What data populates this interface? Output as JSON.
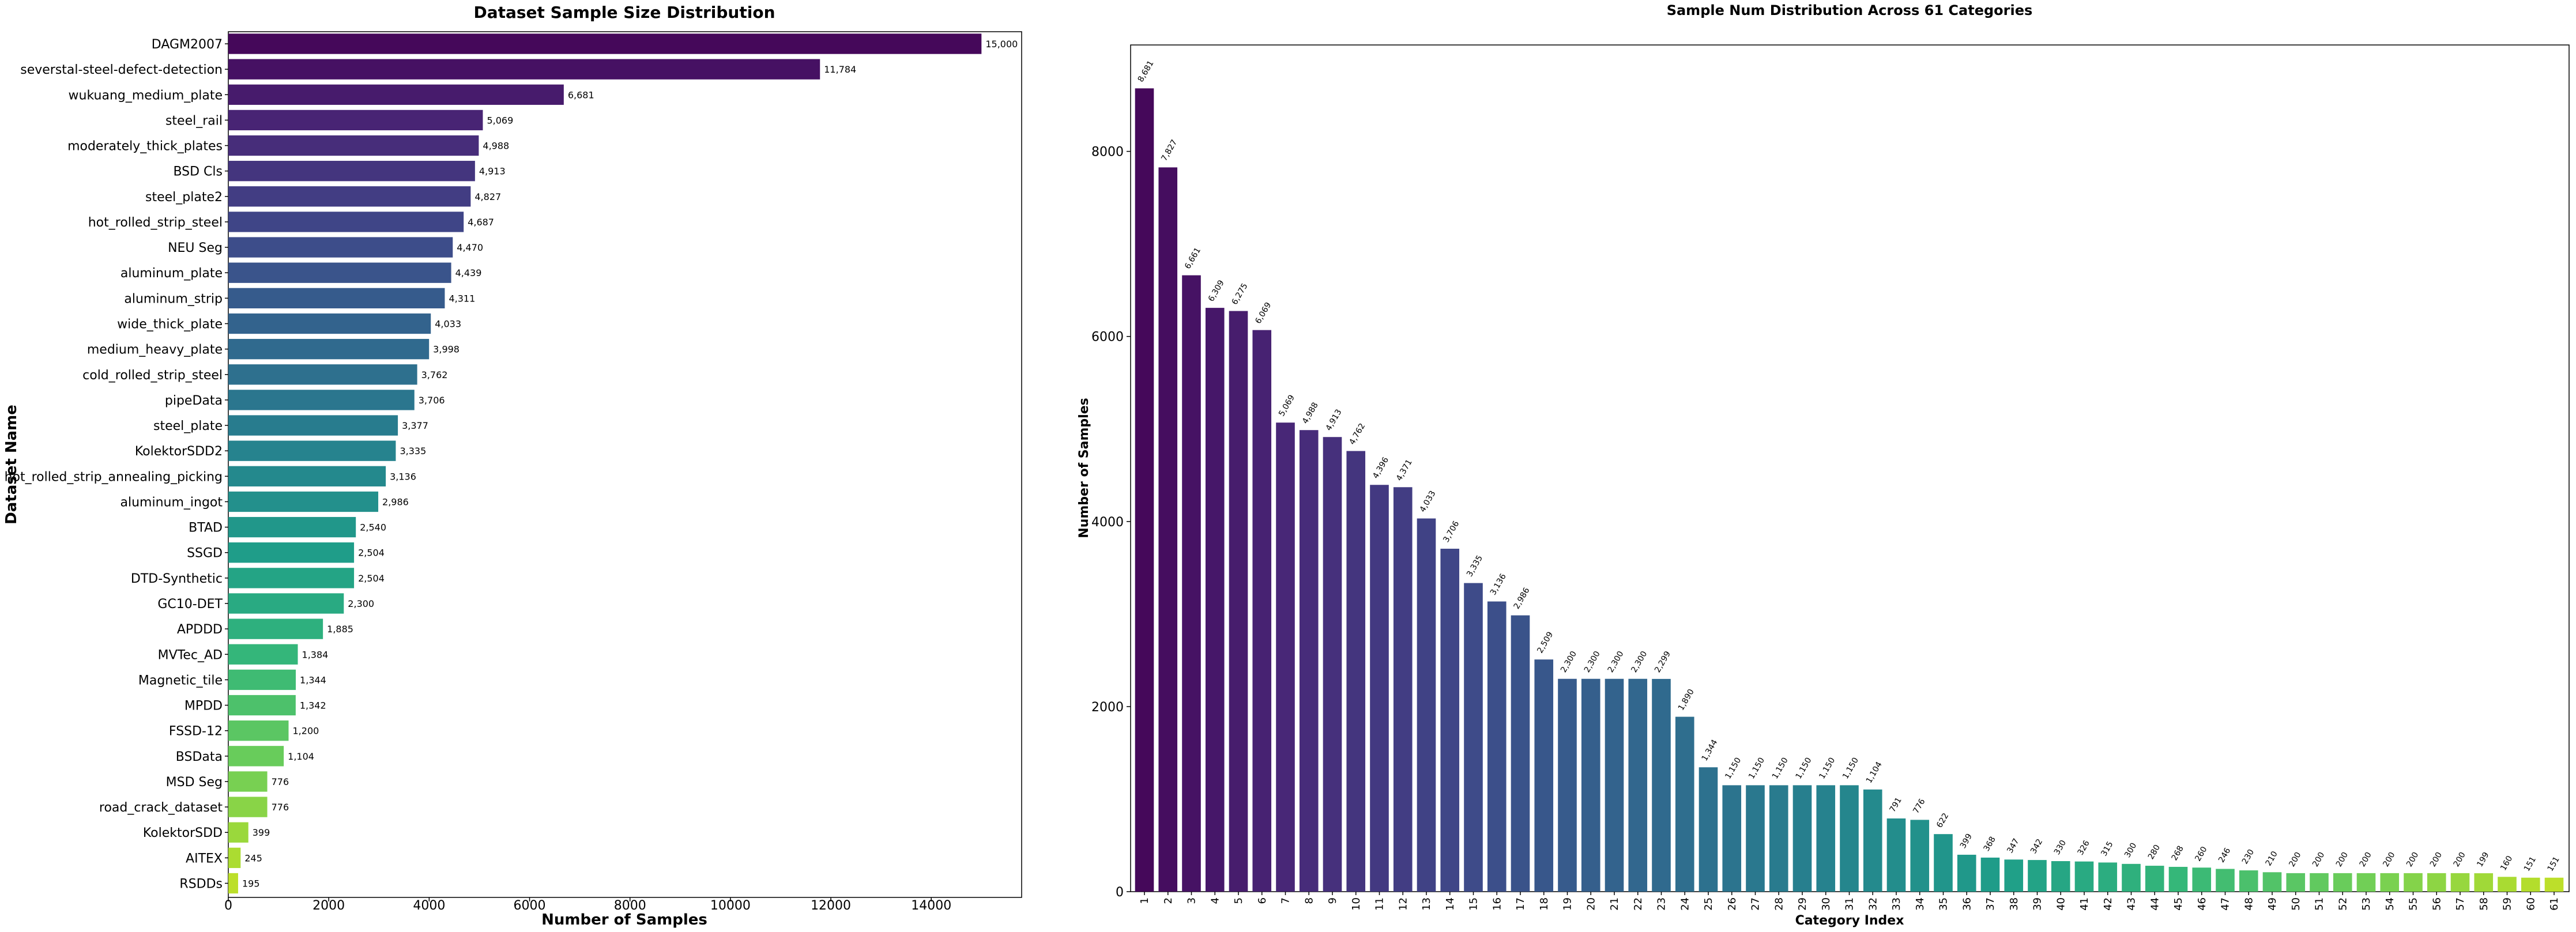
{
  "charts": [
    {
      "type": "bar",
      "orientation": "horizontal",
      "title": "Dataset Sample Size Distribution",
      "xlabel": "Number of Samples",
      "ylabel": "Dataset Name",
      "xlim": [
        0,
        15800
      ],
      "xticks": [
        0,
        2000,
        4000,
        6000,
        8000,
        10000,
        12000,
        14000
      ],
      "grid": false,
      "colormap": "viridis",
      "categories": [
        "DAGM2007",
        "severstal-steel-defect-detection",
        "wukuang_medium_plate",
        "steel_rail",
        "moderately_thick_plates",
        "BSD Cls",
        "steel_plate2",
        "hot_rolled_strip_steel",
        "NEU Seg",
        "aluminum_plate",
        "aluminum_strip",
        "wide_thick_plate",
        "medium_heavy_plate",
        "cold_rolled_strip_steel",
        "pipeData",
        "steel_plate",
        "KolektorSDD2",
        "hot_rolled_strip_annealing_picking",
        "aluminum_ingot",
        "BTAD",
        "SSGD",
        "DTD-Synthetic",
        "GC10-DET",
        "APDDD",
        "MVTec_AD",
        "Magnetic_tile",
        "MPDD",
        "FSSD-12",
        "BSData",
        "MSD Seg",
        "road_crack_dataset",
        "KolektorSDD",
        "AITEX",
        "RSDDs"
      ],
      "values": [
        15000,
        11784,
        6681,
        5069,
        4988,
        4913,
        4827,
        4687,
        4470,
        4439,
        4311,
        4033,
        3998,
        3762,
        3706,
        3377,
        3335,
        3136,
        2986,
        2540,
        2504,
        2504,
        2300,
        1885,
        1384,
        1344,
        1342,
        1200,
        1104,
        776,
        776,
        399,
        245,
        195
      ],
      "value_labels": [
        "15,000",
        "11,784",
        "6,681",
        "5,069",
        "4,988",
        "4,913",
        "4,827",
        "4,687",
        "4,470",
        "4,439",
        "4,311",
        "4,033",
        "3,998",
        "3,762",
        "3,706",
        "3,377",
        "3,335",
        "3,136",
        "2,986",
        "2,540",
        "2,504",
        "2,504",
        "2,300",
        "1,885",
        "1,384",
        "1,344",
        "1,342",
        "1,200",
        "1,104",
        "776",
        "776",
        "399",
        "245",
        "195"
      ]
    },
    {
      "type": "bar",
      "orientation": "vertical",
      "title": "Sample Num Distribution Across 61 Categories",
      "xlabel": "Category Index",
      "ylabel": "Number of Samples",
      "ylim": [
        0,
        9150
      ],
      "yticks": [
        0,
        2000,
        4000,
        6000,
        8000
      ],
      "grid": false,
      "colormap": "viridis",
      "categories": [
        "1",
        "2",
        "3",
        "4",
        "5",
        "6",
        "7",
        "8",
        "9",
        "10",
        "11",
        "12",
        "13",
        "14",
        "15",
        "16",
        "17",
        "18",
        "19",
        "20",
        "21",
        "22",
        "23",
        "24",
        "25",
        "26",
        "27",
        "28",
        "29",
        "30",
        "31",
        "32",
        "33",
        "34",
        "35",
        "36",
        "37",
        "38",
        "39",
        "40",
        "41",
        "42",
        "43",
        "44",
        "45",
        "46",
        "47",
        "48",
        "49",
        "50",
        "51",
        "52",
        "53",
        "54",
        "55",
        "56",
        "57",
        "58",
        "59",
        "60",
        "61"
      ],
      "values": [
        8681,
        7827,
        6661,
        6309,
        6275,
        6069,
        5069,
        4988,
        4913,
        4762,
        4396,
        4371,
        4033,
        3706,
        3335,
        3136,
        2986,
        2509,
        2300,
        2300,
        2300,
        2300,
        2299,
        1890,
        1344,
        1150,
        1150,
        1150,
        1150,
        1150,
        1150,
        1104,
        791,
        776,
        622,
        399,
        368,
        347,
        342,
        330,
        326,
        315,
        300,
        280,
        268,
        260,
        246,
        230,
        210,
        200,
        200,
        200,
        200,
        200,
        200,
        200,
        200,
        199,
        160,
        151,
        151
      ],
      "value_labels": [
        "8,681",
        "7,827",
        "6,661",
        "6,309",
        "6,275",
        "6,069",
        "5,069",
        "4,988",
        "4,913",
        "4,762",
        "4,396",
        "4,371",
        "4,033",
        "3,706",
        "3,335",
        "3,136",
        "2,986",
        "2,509",
        "2,300",
        "2,300",
        "2,300",
        "2,300",
        "2,299",
        "1,890",
        "1,344",
        "1,150",
        "1,150",
        "1,150",
        "1,150",
        "1,150",
        "1,150",
        "1,104",
        "791",
        "776",
        "622",
        "399",
        "368",
        "347",
        "342",
        "330",
        "326",
        "315",
        "300",
        "280",
        "268",
        "260",
        "246",
        "230",
        "210",
        "200",
        "200",
        "200",
        "200",
        "200",
        "200",
        "200",
        "200",
        "199",
        "160",
        "151",
        "151"
      ]
    }
  ]
}
